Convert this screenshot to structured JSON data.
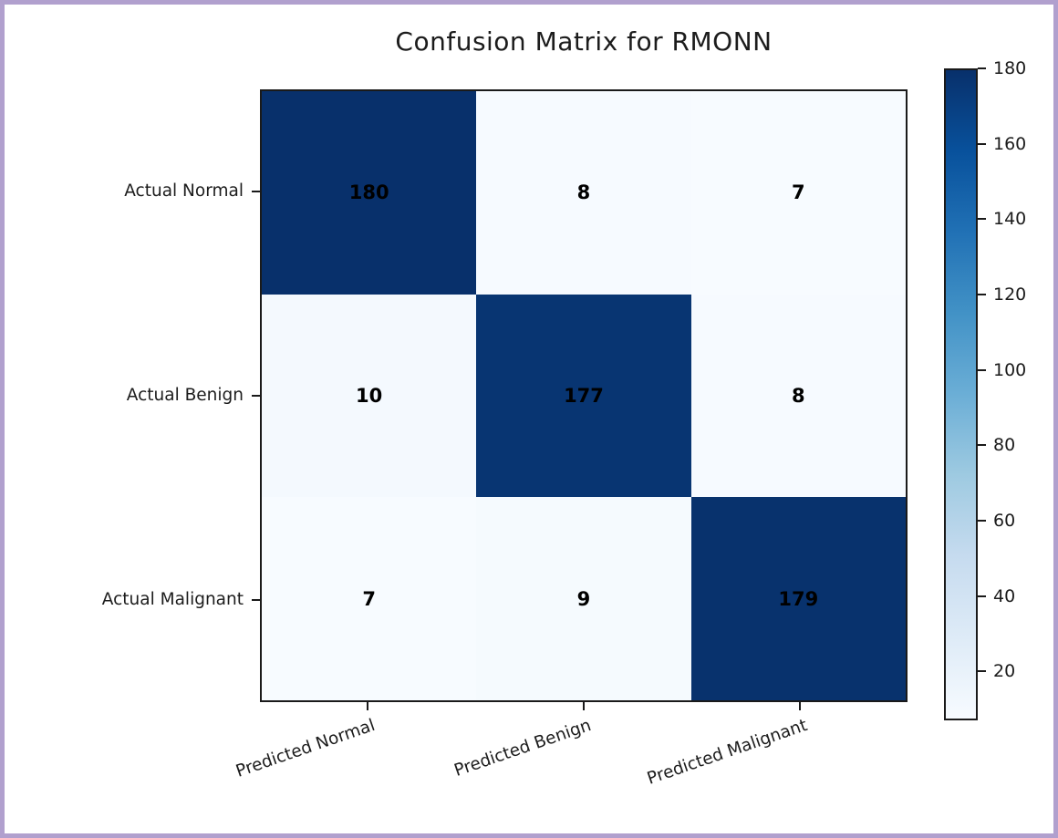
{
  "chart_data": {
    "type": "heatmap",
    "title": "Confusion Matrix for RMONN",
    "row_labels": [
      "Actual Normal",
      "Actual Benign",
      "Actual Malignant"
    ],
    "col_labels": [
      "Predicted Normal",
      "Predicted Benign",
      "Predicted Malignant"
    ],
    "values": [
      [
        180,
        8,
        7
      ],
      [
        10,
        177,
        8
      ],
      [
        7,
        9,
        179
      ]
    ],
    "colormap": "Blues",
    "vmin": 7,
    "vmax": 180,
    "colorbar_ticks": [
      20,
      40,
      60,
      80,
      100,
      120,
      140,
      160,
      180
    ],
    "x_tick_rotation_deg": 19,
    "cell_text_color": "#000000",
    "colors": {
      "dark_cell": "#08306b",
      "light_cell": "#f7fbff",
      "frame_border": "#b1a0ce",
      "axis_spine": "#1a1a1a"
    },
    "legend_position": "right-colorbar",
    "grid": false
  }
}
